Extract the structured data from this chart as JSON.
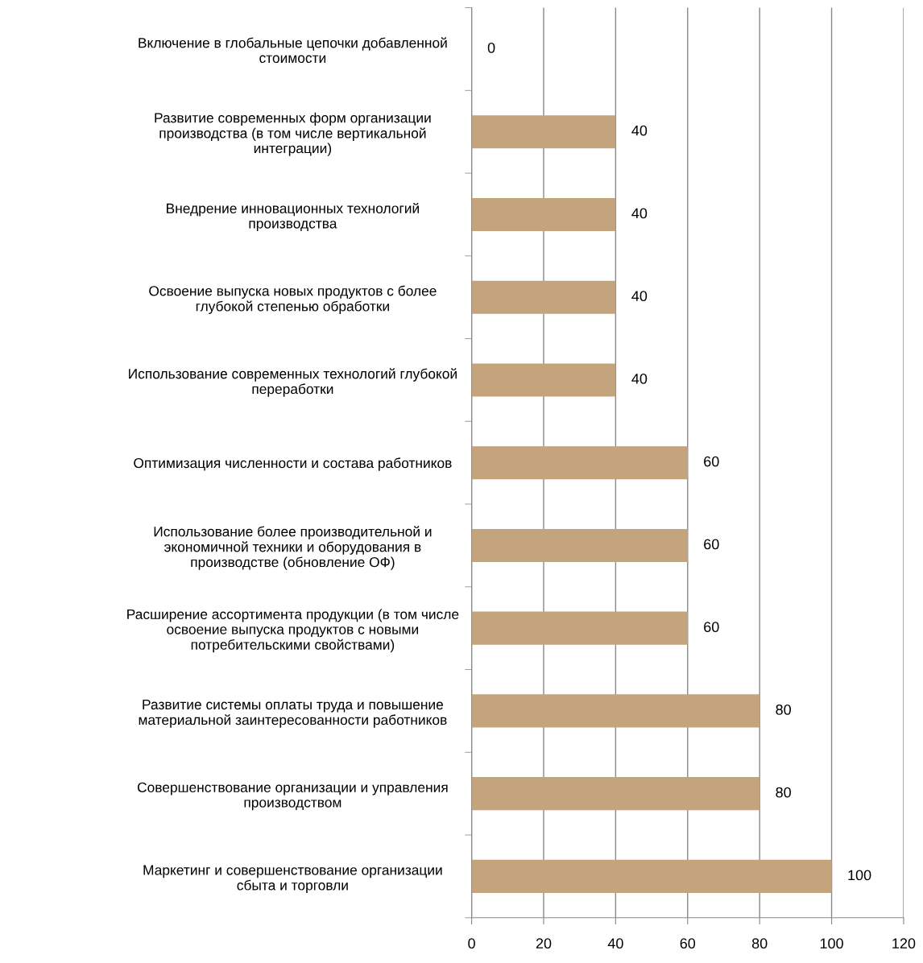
{
  "chart_data": {
    "type": "bar",
    "orientation": "horizontal",
    "categories": [
      "Включение в глобальные цепочки добавленной\nстоимости",
      "Развитие современных форм организации\nпроизводства (в том числе вертикальной\nинтеграции)",
      "Внедрение инновационных технологий\nпроизводства",
      "Освоение выпуска новых продуктов с более\nглубокой степенью обработки",
      "Использование современных технологий глубокой\nпереработки",
      "Оптимизация численности и состава работников",
      "Использование более производительной и\nэкономичной техники и оборудования в\nпроизводстве (обновление ОФ)",
      "Расширение ассортимента продукции (в том числе\nосвоение выпуска продуктов с новыми\nпотребительскими свойствами)",
      "Развитие системы оплаты труда и повышение\nматериальной заинтересованности работников",
      "Совершенствование организации и управления\nпроизводством",
      "Маркетинг и совершенствование организации\nсбыта и торговли"
    ],
    "values": [
      0,
      40,
      40,
      40,
      40,
      60,
      60,
      60,
      80,
      80,
      100
    ],
    "color": "#c4a47c",
    "xlim": [
      0,
      120
    ],
    "xticks": [
      0,
      20,
      40,
      60,
      80,
      100,
      120
    ],
    "grid": "x",
    "data_labels": true,
    "legend": false
  }
}
